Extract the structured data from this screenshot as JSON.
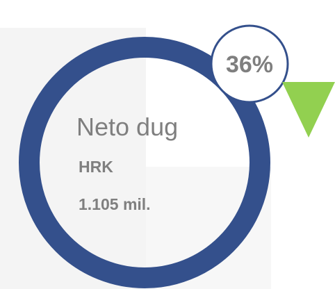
{
  "title": "Neto dug",
  "currency": "HRK",
  "amount": "1.105 mil.",
  "badge": "36%"
}
